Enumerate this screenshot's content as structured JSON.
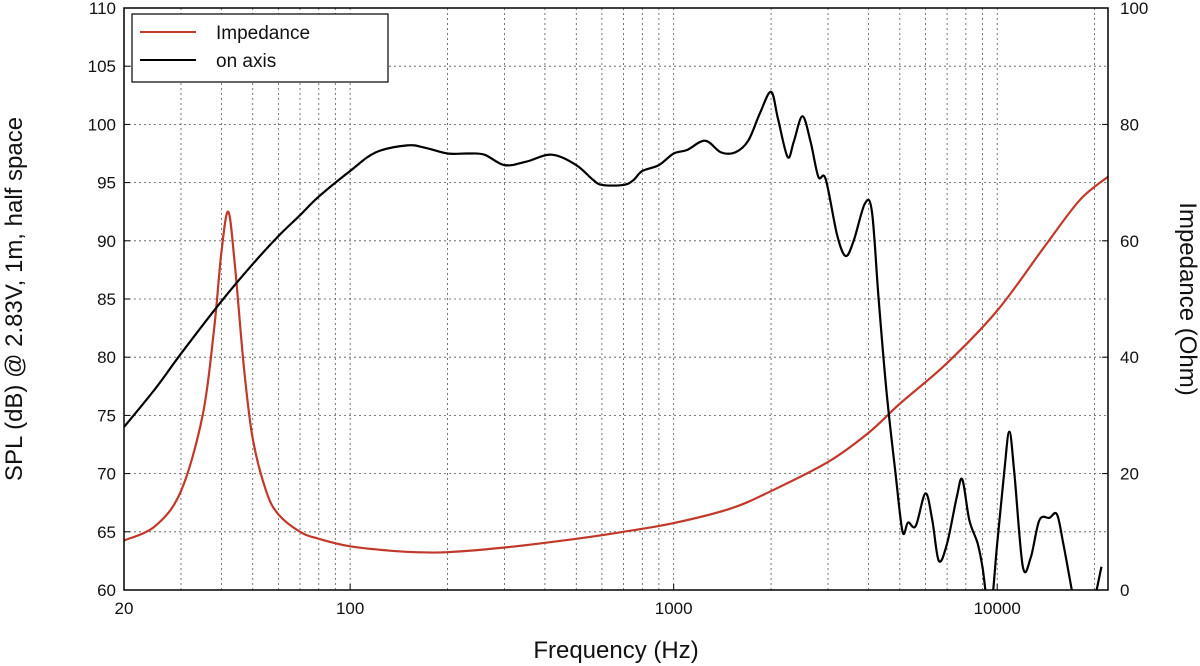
{
  "chart_data": {
    "type": "line",
    "xlabel": "Frequency (Hz)",
    "ylabel_left": "SPL (dB) @ 2.83V, 1m, half space",
    "ylabel_right": "Impedance (Ohm)",
    "x_scale": "log",
    "xlim": [
      20,
      22000
    ],
    "ylim_left": [
      60,
      110
    ],
    "ylim_right": [
      0,
      100
    ],
    "x_tick_labels": [
      "20",
      "100",
      "1000",
      "10000"
    ],
    "x_tick_values": [
      20,
      100,
      1000,
      10000
    ],
    "y_left_ticks": [
      60,
      65,
      70,
      75,
      80,
      85,
      90,
      95,
      100,
      105,
      110
    ],
    "y_right_ticks": [
      0,
      20,
      40,
      60,
      80,
      100
    ],
    "grid": true,
    "legend_position": "top-left",
    "colors": {
      "impedance": "#c0392b",
      "on_axis": "#000000"
    },
    "series": [
      {
        "name": "Impedance",
        "axis": "right",
        "color": "#c0392b",
        "points": [
          [
            20,
            8.5
          ],
          [
            25,
            11
          ],
          [
            30,
            17
          ],
          [
            35,
            30
          ],
          [
            38,
            45
          ],
          [
            40,
            58
          ],
          [
            42,
            65
          ],
          [
            44,
            56
          ],
          [
            47,
            38
          ],
          [
            50,
            26
          ],
          [
            55,
            17
          ],
          [
            60,
            13
          ],
          [
            70,
            10
          ],
          [
            80,
            8.8
          ],
          [
            100,
            7.5
          ],
          [
            130,
            6.8
          ],
          [
            160,
            6.5
          ],
          [
            200,
            6.5
          ],
          [
            300,
            7.3
          ],
          [
            500,
            8.8
          ],
          [
            700,
            10
          ],
          [
            1000,
            11.5
          ],
          [
            1500,
            14
          ],
          [
            2000,
            17
          ],
          [
            3000,
            22
          ],
          [
            4000,
            27
          ],
          [
            5000,
            32
          ],
          [
            7000,
            39
          ],
          [
            10000,
            48
          ],
          [
            14000,
            59
          ],
          [
            18000,
            67
          ],
          [
            22000,
            71
          ]
        ]
      },
      {
        "name": "on axis",
        "axis": "left",
        "color": "#000000",
        "points": [
          [
            20,
            74
          ],
          [
            25,
            77.3
          ],
          [
            30,
            80.3
          ],
          [
            40,
            84.8
          ],
          [
            50,
            88
          ],
          [
            60,
            90.4
          ],
          [
            70,
            92.2
          ],
          [
            80,
            93.8
          ],
          [
            100,
            96
          ],
          [
            120,
            97.6
          ],
          [
            150,
            98.2
          ],
          [
            170,
            98
          ],
          [
            200,
            97.5
          ],
          [
            230,
            97.5
          ],
          [
            260,
            97.4
          ],
          [
            300,
            96.5
          ],
          [
            350,
            96.8
          ],
          [
            420,
            97.4
          ],
          [
            500,
            96.5
          ],
          [
            560,
            95.3
          ],
          [
            600,
            94.8
          ],
          [
            700,
            94.8
          ],
          [
            750,
            95.2
          ],
          [
            800,
            96
          ],
          [
            900,
            96.5
          ],
          [
            1000,
            97.5
          ],
          [
            1100,
            97.8
          ],
          [
            1250,
            98.6
          ],
          [
            1400,
            97.6
          ],
          [
            1550,
            97.6
          ],
          [
            1700,
            98.6
          ],
          [
            1850,
            101
          ],
          [
            2000,
            102.8
          ],
          [
            2100,
            100.5
          ],
          [
            2250,
            97.2
          ],
          [
            2350,
            98.5
          ],
          [
            2500,
            100.7
          ],
          [
            2650,
            98.5
          ],
          [
            2800,
            95.5
          ],
          [
            2950,
            95.3
          ],
          [
            3200,
            90.5
          ],
          [
            3400,
            88.7
          ],
          [
            3600,
            90
          ],
          [
            3900,
            93.2
          ],
          [
            4100,
            92.5
          ],
          [
            4300,
            85
          ],
          [
            4550,
            77
          ],
          [
            4850,
            70
          ],
          [
            5100,
            65
          ],
          [
            5300,
            65.8
          ],
          [
            5600,
            65.5
          ],
          [
            6000,
            68.3
          ],
          [
            6300,
            66
          ],
          [
            6600,
            62.5
          ],
          [
            7000,
            64
          ],
          [
            7500,
            68
          ],
          [
            7800,
            69.5
          ],
          [
            8200,
            66
          ],
          [
            8700,
            64
          ],
          [
            9000,
            62
          ],
          [
            9500,
            58
          ],
          [
            10000,
            64
          ],
          [
            10500,
            70
          ],
          [
            10900,
            73.6
          ],
          [
            11300,
            70
          ],
          [
            12000,
            62
          ],
          [
            12700,
            62.8
          ],
          [
            13500,
            66
          ],
          [
            14500,
            66.2
          ],
          [
            15300,
            66.5
          ],
          [
            16000,
            64
          ],
          [
            17000,
            60
          ],
          [
            18000,
            56
          ],
          [
            19500,
            58
          ],
          [
            21000,
            62
          ]
        ]
      }
    ]
  }
}
